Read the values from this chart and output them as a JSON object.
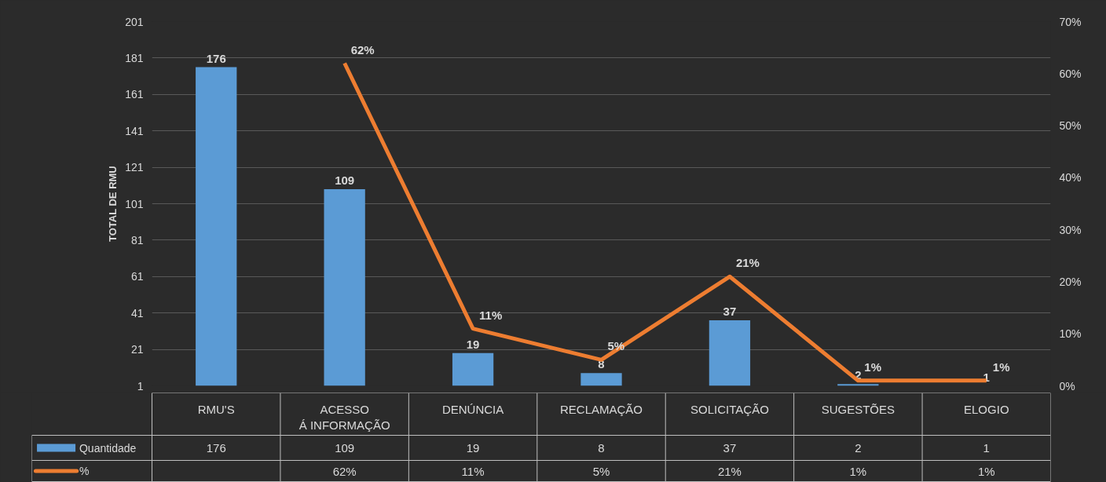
{
  "chart_data": {
    "type": "bar",
    "ylabel": "TOTAL DE RMU",
    "categories": [
      "RMU'S",
      "ACESSO Á INFORMAÇÃO",
      "DENÚNCIA",
      "RECLAMAÇÃO",
      "SOLICITAÇÃO",
      "SUGESTÕES",
      "ELOGIO"
    ],
    "series": [
      {
        "name": "Quantidade",
        "color": "#5b9bd5",
        "values": [
          176,
          109,
          19,
          8,
          37,
          2,
          1
        ],
        "value_labels": [
          "176",
          "109",
          "19",
          "8",
          "37",
          "2",
          "1"
        ]
      },
      {
        "name": "%",
        "type": "line",
        "axis": "y2",
        "color": "#ed7d31",
        "values": [
          null,
          62,
          11,
          5,
          21,
          1,
          1
        ],
        "value_labels": [
          null,
          "62%",
          "11%",
          "5%",
          "21%",
          "1%",
          "1%"
        ]
      }
    ],
    "ylim": [
      1,
      201
    ],
    "yticks": [
      1,
      21,
      41,
      61,
      81,
      101,
      121,
      141,
      161,
      181,
      201
    ],
    "y2lim": [
      0,
      70
    ],
    "y2ticks": [
      {
        "value": 0,
        "label": "0%"
      },
      {
        "value": 10,
        "label": "10%"
      },
      {
        "value": 20,
        "label": "20%"
      },
      {
        "value": 30,
        "label": "30%"
      },
      {
        "value": 40,
        "label": "40%"
      },
      {
        "value": 50,
        "label": "50%"
      },
      {
        "value": 60,
        "label": "60%"
      },
      {
        "value": 70,
        "label": "70%"
      }
    ],
    "grid": "y",
    "legend": "bottom"
  }
}
